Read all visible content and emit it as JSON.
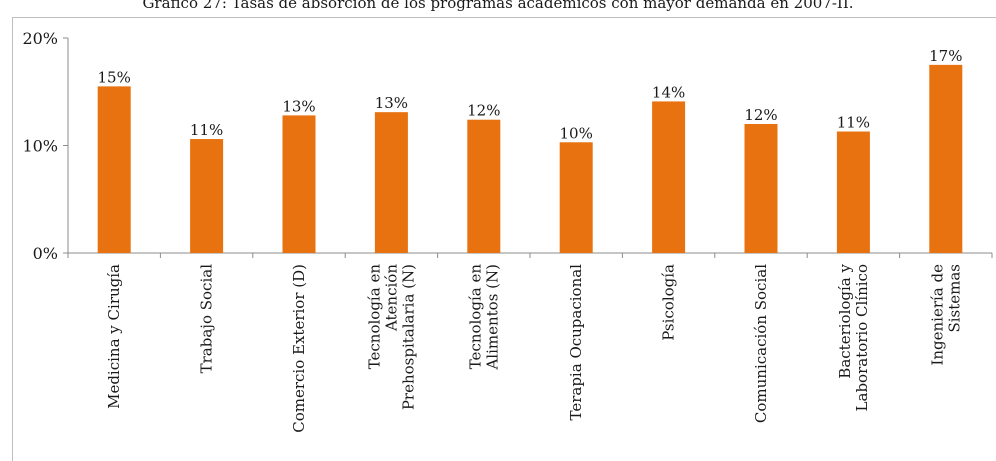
{
  "chart_data": {
    "type": "bar",
    "title": "Gráfico 27: Tasas de absorción de los programas académicos con mayor demanda en 2007-II.",
    "categories": [
      [
        "Medicina y Cirugía"
      ],
      [
        "Trabajo Social"
      ],
      [
        "Comercio Exterior (D)"
      ],
      [
        "Tecnología en",
        "Atención",
        "Prehospitalaria (N)"
      ],
      [
        "Tecnología en",
        "Alimentos (N)"
      ],
      [
        "Terapia Ocupacional"
      ],
      [
        "Psicología"
      ],
      [
        "Comunicación Social"
      ],
      [
        "Bacteriología y",
        "Laboratorio Clínico"
      ],
      [
        "Ingeniería de",
        "Sistemas"
      ]
    ],
    "values": [
      15.5,
      10.6,
      12.8,
      13.1,
      12.4,
      10.3,
      14.1,
      12.0,
      11.3,
      17.5
    ],
    "data_labels": [
      "15%",
      "11%",
      "13%",
      "13%",
      "12%",
      "10%",
      "14%",
      "12%",
      "11%",
      "17%"
    ],
    "y_ticks": [
      "0%",
      "10%",
      "20%"
    ],
    "ylim": [
      0,
      20
    ],
    "bar_color": "#e8720f",
    "grid": false,
    "legend": "none"
  }
}
